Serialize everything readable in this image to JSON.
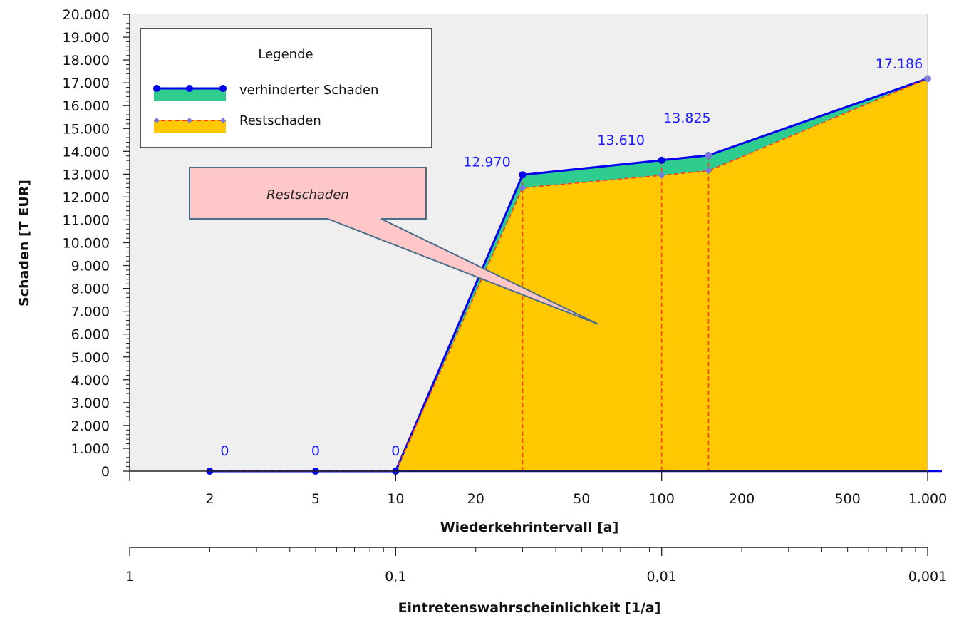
{
  "chart_data": {
    "type": "area",
    "x_scale": "log",
    "x_axis": {
      "label": "Wiederkehrintervall [a]",
      "range": [
        1,
        1000
      ],
      "ticks": [
        {
          "value": 2,
          "label": "2"
        },
        {
          "value": 5,
          "label": "5"
        },
        {
          "value": 10,
          "label": "10"
        },
        {
          "value": 20,
          "label": "20"
        },
        {
          "value": 50,
          "label": "50"
        },
        {
          "value": 100,
          "label": "100"
        },
        {
          "value": 200,
          "label": "200"
        },
        {
          "value": 500,
          "label": "500"
        },
        {
          "value": 1000,
          "label": "1.000"
        }
      ]
    },
    "x2_axis": {
      "label": "Eintretenswahrscheinlichkeit [1/a]",
      "ticks": [
        {
          "value": 1,
          "label": "1"
        },
        {
          "value": 10,
          "label": "0,1"
        },
        {
          "value": 100,
          "label": "0,01"
        },
        {
          "value": 1000,
          "label": "0,001"
        }
      ]
    },
    "y_axis": {
      "label": "Schaden [T EUR]",
      "range": [
        0,
        20000
      ],
      "step": 1000,
      "ticks": [
        "0",
        "1.000",
        "2.000",
        "3.000",
        "4.000",
        "5.000",
        "6.000",
        "7.000",
        "8.000",
        "9.000",
        "10.000",
        "11.000",
        "12.000",
        "13.000",
        "14.000",
        "15.000",
        "16.000",
        "17.000",
        "18.000",
        "19.000",
        "20.000"
      ]
    },
    "series": [
      {
        "name": "verhinderter Schaden",
        "color": "#0000ee",
        "fill": "#2ecc8e",
        "points": [
          [
            2,
            0
          ],
          [
            5,
            0
          ],
          [
            10,
            0
          ],
          [
            30,
            12970
          ],
          [
            100,
            13610
          ],
          [
            150,
            13825
          ],
          [
            1000,
            17186
          ]
        ]
      },
      {
        "name": "Restschaden",
        "color": "#ff3b1a",
        "marker_color": "#7777dd",
        "fill": "#ffc800",
        "points": [
          [
            2,
            0
          ],
          [
            5,
            0
          ],
          [
            10,
            0
          ],
          [
            30,
            12400
          ],
          [
            100,
            12950
          ],
          [
            150,
            13150
          ],
          [
            1000,
            17186
          ]
        ]
      }
    ],
    "data_labels": [
      {
        "x": 2,
        "y": 0,
        "text": "0"
      },
      {
        "x": 5,
        "y": 0,
        "text": "0"
      },
      {
        "x": 10,
        "y": 0,
        "text": "0"
      },
      {
        "x": 30,
        "y": 12970,
        "text": "12.970"
      },
      {
        "x": 100,
        "y": 13610,
        "text": "13.610"
      },
      {
        "x": 150,
        "y": 13825,
        "text": "13.825"
      },
      {
        "x": 1000,
        "y": 17186,
        "text": "17.186"
      }
    ],
    "drop_lines_x": [
      30,
      100,
      150
    ],
    "legend": {
      "title": "Legende",
      "position": "top-left",
      "items": [
        "verhinderter Schaden",
        "Restschaden"
      ]
    },
    "annotation": {
      "text": "Restschaden",
      "pointer_to": {
        "x": 58,
        "y": 6400
      }
    },
    "background": "#efefef"
  }
}
